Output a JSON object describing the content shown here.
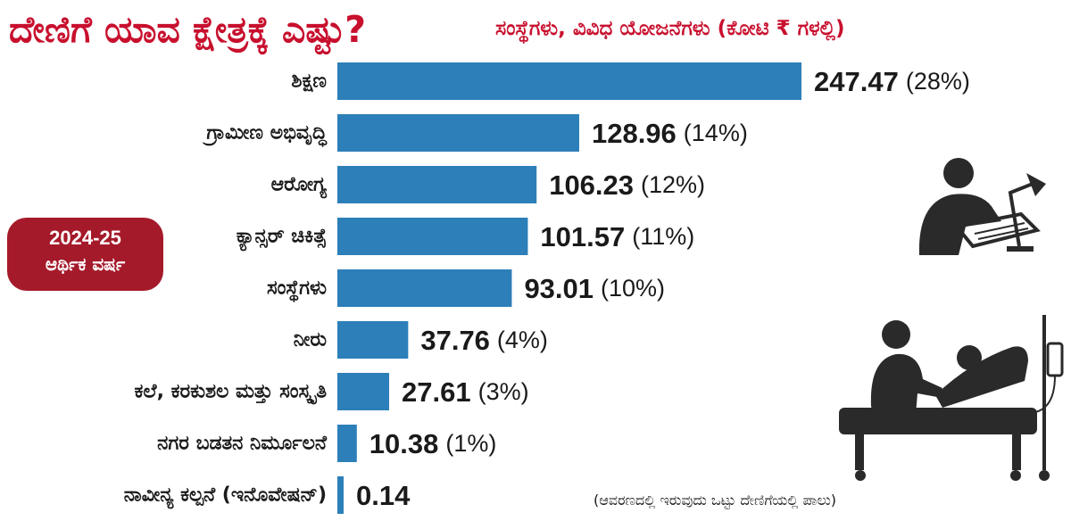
{
  "header": {
    "title": "ದೇಣಿಗೆ ಯಾವ ಕ್ಷೇತ್ರಕ್ಕೆ ಎಷ್ಟು?",
    "subtitle": "ಸಂಸ್ಥೆಗಳು, ವಿವಿಧ ಯೋಜನೆಗಳು  (ಕೋಟಿ ₹ ಗಳಲ್ಲಿ)"
  },
  "badge": {
    "year": "2024-25",
    "label": "ಆರ್ಥಿಕ ವರ್ಷ"
  },
  "footnote": "(ಆವರಣದಲ್ಲಿ ಇರುವುದು ಒಟ್ಟು ದೇಣಿಗೆಯಲ್ಲಿ ಪಾಲು)",
  "colors": {
    "bar": "#2c7fb8",
    "title": "#c8102e",
    "badge": "#a51a2a",
    "illustration": "#2a2a2a"
  },
  "icons": [
    "person-at-desk-with-lamp-icon",
    "doctor-treating-patient-icon"
  ],
  "chart_data": {
    "type": "bar",
    "orientation": "horizontal",
    "categories": [
      "ಶಿಕ್ಷಣ",
      "ಗ್ರಾಮೀಣ ಅಭಿವೃದ್ಧಿ",
      "ಆರೋಗ್ಯ",
      "ಕ್ಯಾನ್ಸರ್ ಚಿಕಿತ್ಸೆ",
      "ಸಂಸ್ಥೆಗಳು",
      "ನೀರು",
      "ಕಲೆ, ಕರಕುಶಲ ಮತ್ತು ಸಂಸ್ಕೃತಿ",
      "ನಗರ ಬಡತನ ನಿರ್ಮೂಲನೆ",
      "ನಾವೀನ್ಯ ಕಲ್ಪನೆ (ಇನೊವೇಷನ್)"
    ],
    "values": [
      247.47,
      128.96,
      106.23,
      101.57,
      93.01,
      37.76,
      27.61,
      10.38,
      0.14
    ],
    "value_labels": [
      "247.47",
      "128.96",
      "106.23",
      "101.57",
      "93.01",
      "37.76",
      "27.61",
      "10.38",
      "0.14"
    ],
    "percent_labels": [
      "(28%)",
      "(14%)",
      "(12%)",
      "(11%)",
      "(10%)",
      "(4%)",
      "(3%)",
      "(1%)",
      ""
    ],
    "title": "ದೇಣಿಗೆ ಯಾವ ಕ್ಷೇತ್ರಕ್ಕೆ ಎಷ್ಟು?",
    "xlabel": "",
    "ylabel": "",
    "grid": false,
    "legend": "none"
  }
}
